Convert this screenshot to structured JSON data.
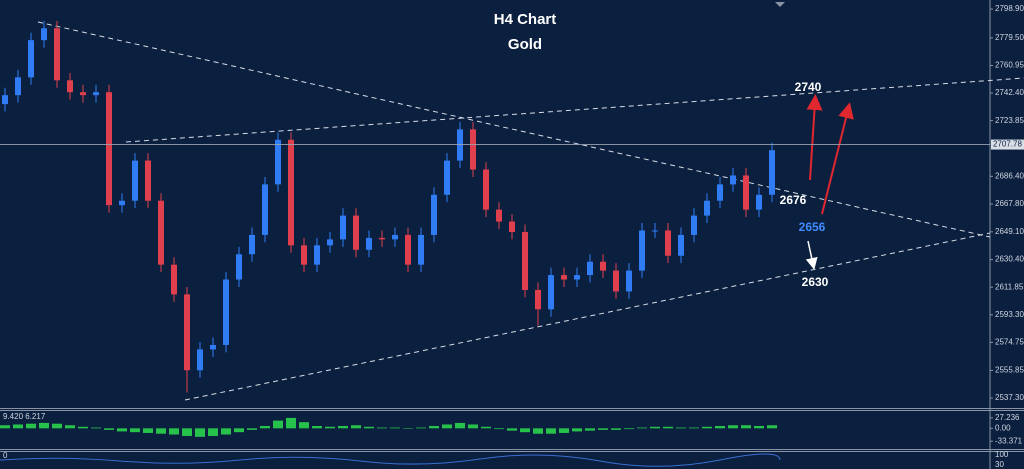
{
  "chart_data": {
    "type": "candlestick",
    "title": "H4 Chart",
    "subtitle": "Gold",
    "up_color": "#2f7cf5",
    "down_color": "#e0404e",
    "ylim": [
      2530.6,
      2805.0
    ],
    "yticks": [
      {
        "value": 2798.9,
        "label": "2798.90"
      },
      {
        "value": 2779.5,
        "label": "2779.50"
      },
      2760.95,
      {
        "value": 2742.4,
        "label": "2742.40"
      },
      2723.85,
      {
        "value": 2686.4,
        "label": "2686.40"
      },
      {
        "value": 2667.8,
        "label": "2667.80"
      },
      {
        "value": 2649.1,
        "label": "2649.10"
      },
      {
        "value": 2630.4,
        "label": "2630.40"
      },
      2611.85,
      {
        "value": 2593.3,
        "label": "2593.30"
      },
      2574.75,
      2555.85,
      {
        "value": 2537.3,
        "label": "2537.30"
      }
    ],
    "last_price": 2707.78,
    "open": [
      2735,
      2741,
      2753,
      2778,
      2786,
      2751,
      2743,
      2741,
      2743,
      2667,
      2670,
      2697,
      2670,
      2627,
      2607,
      2556,
      2570,
      2573,
      2617,
      2634,
      2647,
      2681,
      2711,
      2640,
      2627,
      2640,
      2644,
      2660,
      2637,
      2645,
      2644,
      2647,
      2627,
      2647,
      2674,
      2697,
      2718,
      2691,
      2664,
      2656,
      2649,
      2610,
      2597,
      2620,
      2617,
      2620,
      2629,
      2623,
      2609,
      2623,
      2650,
      2650,
      2633,
      2647,
      2660,
      2670,
      2681,
      2687,
      2664,
      2674
    ],
    "high": [
      2746,
      2758,
      2783,
      2791,
      2791,
      2756,
      2748,
      2748,
      2748,
      2675,
      2702,
      2702,
      2675,
      2632,
      2612,
      2575,
      2578,
      2622,
      2639,
      2652,
      2686,
      2716,
      2716,
      2645,
      2645,
      2649,
      2665,
      2665,
      2650,
      2650,
      2652,
      2652,
      2652,
      2679,
      2702,
      2723,
      2723,
      2696,
      2669,
      2661,
      2654,
      2615,
      2625,
      2625,
      2625,
      2634,
      2634,
      2628,
      2628,
      2655,
      2655,
      2655,
      2652,
      2665,
      2675,
      2686,
      2692,
      2692,
      2679,
      2709
    ],
    "low": [
      2730,
      2736,
      2748,
      2773,
      2746,
      2738,
      2736,
      2736,
      2662,
      2662,
      2665,
      2665,
      2622,
      2602,
      2541,
      2551,
      2565,
      2568,
      2612,
      2629,
      2642,
      2676,
      2635,
      2622,
      2622,
      2635,
      2639,
      2632,
      2632,
      2639,
      2639,
      2622,
      2622,
      2642,
      2669,
      2692,
      2686,
      2659,
      2651,
      2644,
      2605,
      2586,
      2592,
      2612,
      2612,
      2615,
      2618,
      2604,
      2604,
      2618,
      2645,
      2628,
      2628,
      2642,
      2655,
      2665,
      2676,
      2659,
      2659,
      2669
    ],
    "close": [
      2741,
      2753,
      2778,
      2786,
      2751,
      2743,
      2741,
      2743,
      2667,
      2670,
      2697,
      2670,
      2627,
      2607,
      2556,
      2570,
      2573,
      2617,
      2634,
      2647,
      2681,
      2711,
      2640,
      2627,
      2640,
      2644,
      2660,
      2637,
      2645,
      2644,
      2647,
      2627,
      2647,
      2674,
      2697,
      2718,
      2691,
      2664,
      2656,
      2649,
      2610,
      2597,
      2620,
      2617,
      2620,
      2629,
      2623,
      2609,
      2623,
      2650,
      2650,
      2633,
      2647,
      2660,
      2670,
      2681,
      2687,
      2664,
      2674,
      2704
    ],
    "annotations": [
      "2740",
      "2676",
      "2656",
      "2630"
    ],
    "indicator": {
      "type": "bar",
      "label": "9.420 6.217",
      "color": "#27c24c",
      "ylim": [
        -53.6,
        44.9
      ],
      "yticks": [
        27.236,
        {
          "value": 0,
          "label": "0.00"
        },
        -33.371
      ],
      "values": [
        8,
        10,
        12,
        14,
        12,
        8,
        4,
        2,
        -4,
        -8,
        -10,
        -12,
        -14,
        -16,
        -20,
        -22,
        -20,
        -16,
        -10,
        -4,
        6,
        20,
        27,
        16,
        6,
        4,
        6,
        8,
        4,
        2,
        2,
        0,
        2,
        6,
        10,
        14,
        10,
        4,
        -2,
        -6,
        -10,
        -14,
        -14,
        -12,
        -8,
        -6,
        -4,
        -4,
        -2,
        2,
        4,
        4,
        2,
        2,
        4,
        6,
        8,
        8,
        6,
        8
      ]
    },
    "oscillator": {
      "label": "0",
      "yticks_text": [
        "100",
        "30"
      ]
    }
  }
}
